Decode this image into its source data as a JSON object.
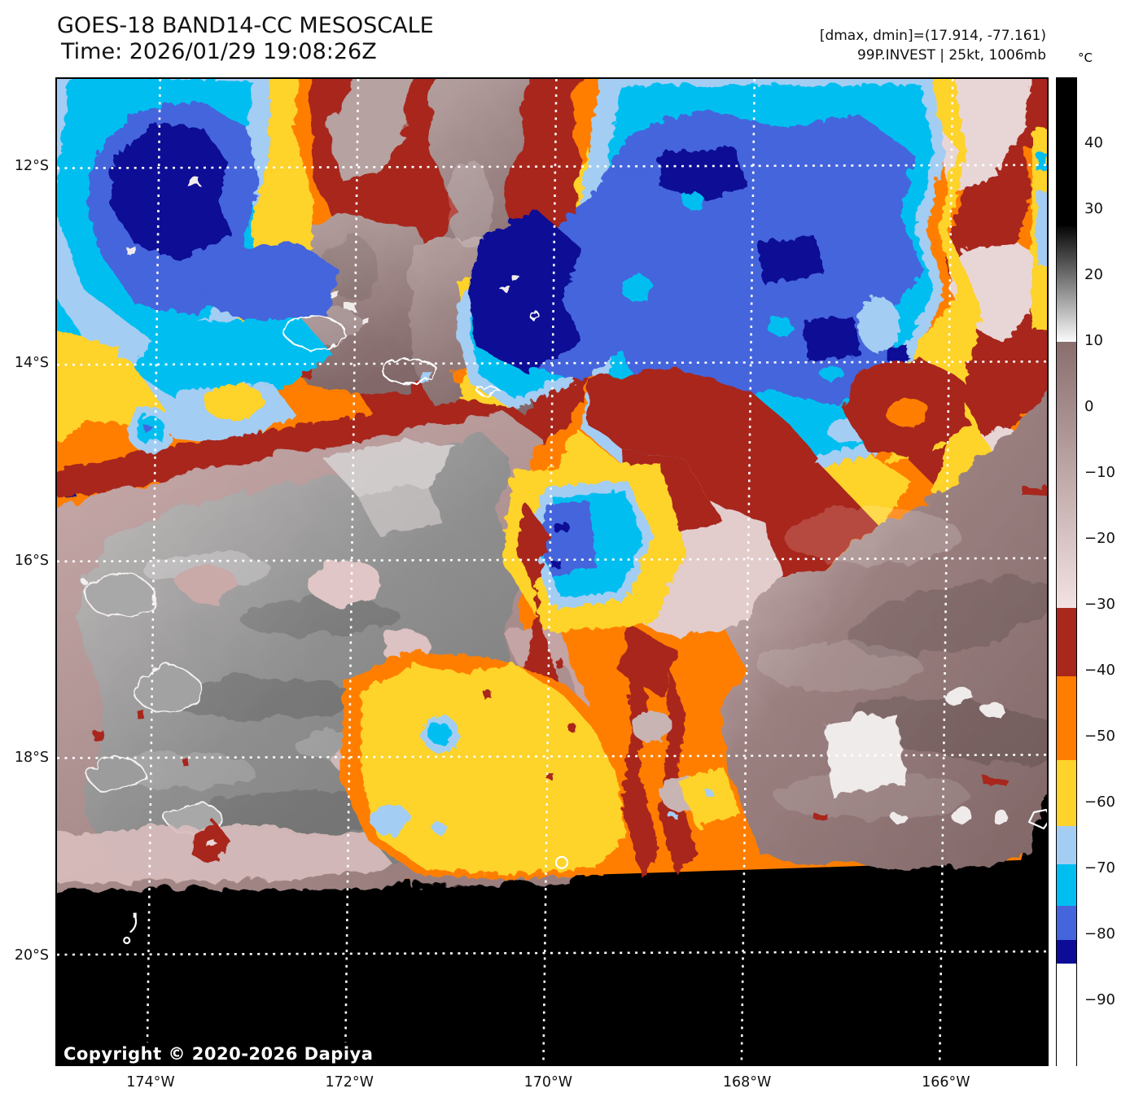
{
  "header": {
    "title": "GOES-18 BAND14-CC MESOSCALE",
    "time_line": "Time: 2026/01/29 19:08:26Z"
  },
  "annotations": {
    "dmax_dmin": "[dmax, dmin]=(17.914, -77.161)",
    "storm_info": "99P.INVEST | 25kt, 1006mb"
  },
  "copyright": "Copyright © 2020-2026 Dapiya",
  "palette": {
    "black": "#000000",
    "white": "#ffffff",
    "offwhite": "#f0ebeb",
    "navy": "#0c0c96",
    "royal": "#4565dc",
    "cyan": "#00bff0",
    "lightblue": "#a4cdf3",
    "yellow": "#fed32b",
    "orange": "#ff7e00",
    "darkred": "#a8281c",
    "mauve": "#9b8080",
    "mauve_dark": "#826868",
    "mauve_light": "#b7a2a2",
    "palepink": "#e8d6d6",
    "pink": "#d9bcbc",
    "gray": "#8f8f8f",
    "gray_dark": "#767676",
    "gray_light": "#c6c1c1",
    "grid": "#ffffff"
  },
  "chart_data": {
    "type": "heatmap",
    "title": "GOES-18 BAND14-CC MESOSCALE",
    "subtitle": "Time: 2026/01/29 19:08:26Z",
    "satellite": "GOES-18",
    "band": "BAND14-CC",
    "sector": "MESOSCALE",
    "dmax_c": 17.914,
    "dmin_c": -77.161,
    "storm_id": "99P.INVEST",
    "storm_wind": "25kt",
    "storm_pressure": "1006mb",
    "x_axis": {
      "ticks": [
        {
          "label": "174°W",
          "deg_west": 174
        },
        {
          "label": "172°W",
          "deg_west": 172
        },
        {
          "label": "170°W",
          "deg_west": 170
        },
        {
          "label": "168°W",
          "deg_west": 168
        },
        {
          "label": "166°W",
          "deg_west": 166
        }
      ],
      "approx_range_deg_west": [
        175.0,
        165.1
      ]
    },
    "y_axis": {
      "ticks": [
        {
          "label": "12°S",
          "deg_south": 12
        },
        {
          "label": "14°S",
          "deg_south": 14
        },
        {
          "label": "16°S",
          "deg_south": 16
        },
        {
          "label": "18°S",
          "deg_south": 18
        },
        {
          "label": "20°S",
          "deg_south": 20
        }
      ],
      "approx_range_deg_south": [
        11.1,
        21.1
      ]
    },
    "grid": "white dotted graticule every 2 degrees",
    "colorbar": {
      "unit": "°C",
      "range": [
        50,
        -100
      ],
      "ticks": [
        "40",
        "30",
        "20",
        "10",
        "0",
        "−10",
        "−20",
        "−30",
        "−40",
        "−50",
        "−60",
        "−70",
        "−80",
        "−90"
      ],
      "tick_values": [
        40,
        30,
        20,
        10,
        0,
        -10,
        -20,
        -30,
        -40,
        -50,
        -60,
        -70,
        -80,
        -90
      ],
      "segments": [
        {
          "from": 50,
          "to": 27.5,
          "color": "#000000"
        },
        {
          "from": 27.5,
          "to": 10,
          "gradient": [
            "#060606",
            "#fbfbfb"
          ]
        },
        {
          "from": 10,
          "to": -30.4,
          "gradient": [
            "#8a6e6e",
            "#f3e2e2"
          ]
        },
        {
          "from": -30.4,
          "to": -40.7,
          "color": "#a8281c"
        },
        {
          "from": -40.7,
          "to": -53.5,
          "color": "#ff7e00"
        },
        {
          "from": -53.5,
          "to": -63.5,
          "color": "#fed32b"
        },
        {
          "from": -63.5,
          "to": -69.3,
          "color": "#a4cdf3"
        },
        {
          "from": -69.3,
          "to": -75.5,
          "color": "#00bff0"
        },
        {
          "from": -75.5,
          "to": -80.7,
          "color": "#4565dc"
        },
        {
          "from": -80.7,
          "to": -84.3,
          "color": "#0c0c96"
        },
        {
          "from": -84.3,
          "to": -100,
          "color": "#ffffff"
        }
      ]
    },
    "features": [
      {
        "area": "northwest (12S 174.5W)",
        "content": "deep convective cluster, cloud tops -75 to -85°C with navy core and white <-85°C overshooting pixels"
      },
      {
        "area": "north-central (11-14S 172W)",
        "content": "warm mid-level band 0 to +10°C (mauve-gray) flanked by -30 to -40°C dark-red anvil edges; island coastlines outlined in white"
      },
      {
        "area": "north-northeast (11.5-14S 168-170W)",
        "content": "large cold overcast -65 to -85°C (invest 99P area): cyan shield, royal-blue interior, several navy cores, yellow -55/-65°C fringe"
      },
      {
        "area": "northeast corner (12-13S 166W)",
        "content": "-30 to -45°C dark-red anvil debris with pale-pink -25°C pockets"
      },
      {
        "area": "center (15.5S 170W)",
        "content": "small isolated cold cell -65 to -80°C (cyan/royal blue) ringed by yellow anvil"
      },
      {
        "area": "west-central (15-18.5S 172-175W)",
        "content": "warm, mostly clear slot +10 to +30°C (textured gray) with pink low-cloud fringes"
      },
      {
        "area": "south-central (17-19S 170.5-171.5W)",
        "content": "-55 to -65°C yellow anvil remnant with small -70°C pockets"
      },
      {
        "area": "southeast (15-19S 165-169W)",
        "content": "warm stratiform cloud -5 to +10°C (brown-mauve) with bright +15 to +25°C cells"
      },
      {
        "area": "south (below ~19.2S)",
        "content": "black no-data region outside mesoscale scan; small island chain outlined in white near 19.5S 174.3W"
      }
    ]
  }
}
